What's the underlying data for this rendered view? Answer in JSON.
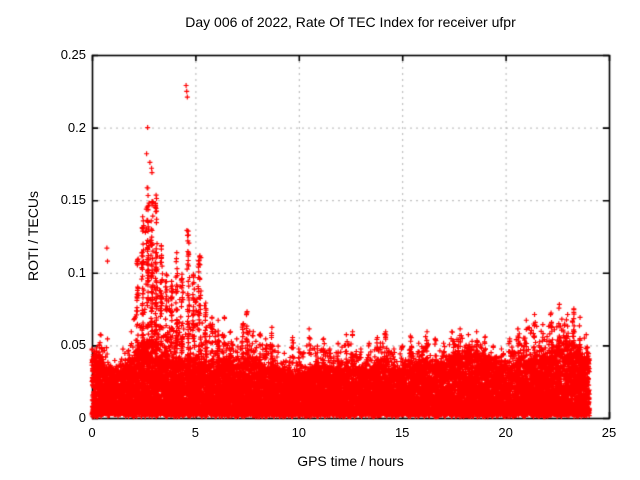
{
  "page": {
    "background": "#ffffff"
  },
  "chart_data": {
    "type": "scatter",
    "title": "Day 006 of 2022, Rate Of TEC Index for receiver ufpr",
    "xlabel": "GPS time / hours",
    "ylabel": "ROTI / TECUs",
    "xlim": [
      0,
      25
    ],
    "ylim": [
      0,
      0.25
    ],
    "xticks": [
      "0",
      "5",
      "10",
      "15",
      "20",
      "25"
    ],
    "yticks": [
      "0",
      "0.05",
      "0.1",
      "0.15",
      "0.2",
      "0.25"
    ],
    "xtick_values": [
      0,
      5,
      10,
      15,
      20,
      25
    ],
    "ytick_values": [
      0,
      0.05,
      0.1,
      0.15,
      0.2,
      0.25
    ],
    "grid": true,
    "grid_style": "dotted",
    "legend": "none",
    "marker": "plus",
    "marker_color": "#ff0000",
    "frame_color": "#000000",
    "grid_color": "#b2b2b2",
    "text_color": "#000000",
    "data_time_range_hours": [
      0,
      24.05
    ],
    "seed": 11,
    "n_band_points": 16000,
    "n_tail_points": 1600,
    "n_fringe_points": 1300,
    "band_top_profile": [
      [
        0.0,
        0.04
      ],
      [
        0.5,
        0.035
      ],
      [
        1.0,
        0.028
      ],
      [
        1.5,
        0.03
      ],
      [
        2.0,
        0.038
      ],
      [
        2.6,
        0.05
      ],
      [
        3.2,
        0.048
      ],
      [
        3.8,
        0.036
      ],
      [
        4.4,
        0.034
      ],
      [
        5.0,
        0.036
      ],
      [
        5.6,
        0.034
      ],
      [
        6.2,
        0.036
      ],
      [
        6.8,
        0.034
      ],
      [
        7.4,
        0.036
      ],
      [
        8.0,
        0.035
      ],
      [
        8.6,
        0.033
      ],
      [
        9.2,
        0.028
      ],
      [
        9.8,
        0.027
      ],
      [
        10.4,
        0.03
      ],
      [
        11.0,
        0.032
      ],
      [
        11.6,
        0.028
      ],
      [
        12.2,
        0.032
      ],
      [
        12.8,
        0.03
      ],
      [
        13.4,
        0.032
      ],
      [
        14.0,
        0.034
      ],
      [
        14.6,
        0.03
      ],
      [
        15.2,
        0.032
      ],
      [
        15.8,
        0.034
      ],
      [
        16.4,
        0.033
      ],
      [
        17.0,
        0.034
      ],
      [
        17.6,
        0.04
      ],
      [
        18.2,
        0.042
      ],
      [
        18.8,
        0.04
      ],
      [
        19.4,
        0.035
      ],
      [
        19.9,
        0.032
      ],
      [
        20.4,
        0.035
      ],
      [
        21.0,
        0.036
      ],
      [
        21.6,
        0.038
      ],
      [
        22.2,
        0.04
      ],
      [
        22.8,
        0.044
      ],
      [
        23.4,
        0.042
      ],
      [
        23.9,
        0.034
      ]
    ],
    "spike_envelope": [
      [
        0.0,
        0.048
      ],
      [
        0.4,
        0.058
      ],
      [
        0.75,
        0.055
      ],
      [
        1.1,
        0.04
      ],
      [
        1.5,
        0.048
      ],
      [
        1.9,
        0.06
      ],
      [
        2.2,
        0.11
      ],
      [
        2.45,
        0.14
      ],
      [
        2.7,
        0.16
      ],
      [
        2.9,
        0.15
      ],
      [
        3.1,
        0.155
      ],
      [
        3.35,
        0.12
      ],
      [
        3.6,
        0.1
      ],
      [
        3.85,
        0.095
      ],
      [
        4.1,
        0.115
      ],
      [
        4.35,
        0.1
      ],
      [
        4.65,
        0.13
      ],
      [
        4.9,
        0.1
      ],
      [
        5.2,
        0.112
      ],
      [
        5.5,
        0.08
      ],
      [
        5.8,
        0.07
      ],
      [
        6.1,
        0.068
      ],
      [
        6.4,
        0.07
      ],
      [
        6.7,
        0.06
      ],
      [
        7.0,
        0.055
      ],
      [
        7.3,
        0.065
      ],
      [
        7.5,
        0.074
      ],
      [
        7.8,
        0.06
      ],
      [
        8.1,
        0.058
      ],
      [
        8.4,
        0.055
      ],
      [
        8.7,
        0.063
      ],
      [
        9.0,
        0.05
      ],
      [
        9.3,
        0.045
      ],
      [
        9.7,
        0.056
      ],
      [
        10.0,
        0.048
      ],
      [
        10.5,
        0.062
      ],
      [
        10.9,
        0.05
      ],
      [
        11.2,
        0.055
      ],
      [
        11.5,
        0.048
      ],
      [
        11.9,
        0.052
      ],
      [
        12.3,
        0.058
      ],
      [
        12.6,
        0.06
      ],
      [
        13.0,
        0.048
      ],
      [
        13.4,
        0.052
      ],
      [
        13.8,
        0.056
      ],
      [
        14.2,
        0.06
      ],
      [
        14.6,
        0.048
      ],
      [
        15.0,
        0.05
      ],
      [
        15.4,
        0.057
      ],
      [
        15.8,
        0.052
      ],
      [
        16.2,
        0.06
      ],
      [
        16.6,
        0.055
      ],
      [
        17.0,
        0.052
      ],
      [
        17.4,
        0.06
      ],
      [
        17.8,
        0.062
      ],
      [
        18.2,
        0.058
      ],
      [
        18.6,
        0.06
      ],
      [
        19.0,
        0.056
      ],
      [
        19.4,
        0.05
      ],
      [
        19.8,
        0.048
      ],
      [
        20.2,
        0.055
      ],
      [
        20.6,
        0.062
      ],
      [
        21.0,
        0.068
      ],
      [
        21.4,
        0.072
      ],
      [
        21.8,
        0.065
      ],
      [
        22.2,
        0.073
      ],
      [
        22.6,
        0.079
      ],
      [
        23.0,
        0.072
      ],
      [
        23.3,
        0.076
      ],
      [
        23.6,
        0.07
      ],
      [
        23.9,
        0.058
      ]
    ],
    "outliers": [
      [
        0.72,
        0.117
      ],
      [
        0.75,
        0.108
      ],
      [
        2.69,
        0.2
      ],
      [
        2.64,
        0.182
      ],
      [
        2.8,
        0.176
      ],
      [
        2.88,
        0.172
      ],
      [
        2.9,
        0.169
      ],
      [
        4.55,
        0.229
      ],
      [
        4.58,
        0.225
      ],
      [
        4.61,
        0.221
      ]
    ]
  }
}
